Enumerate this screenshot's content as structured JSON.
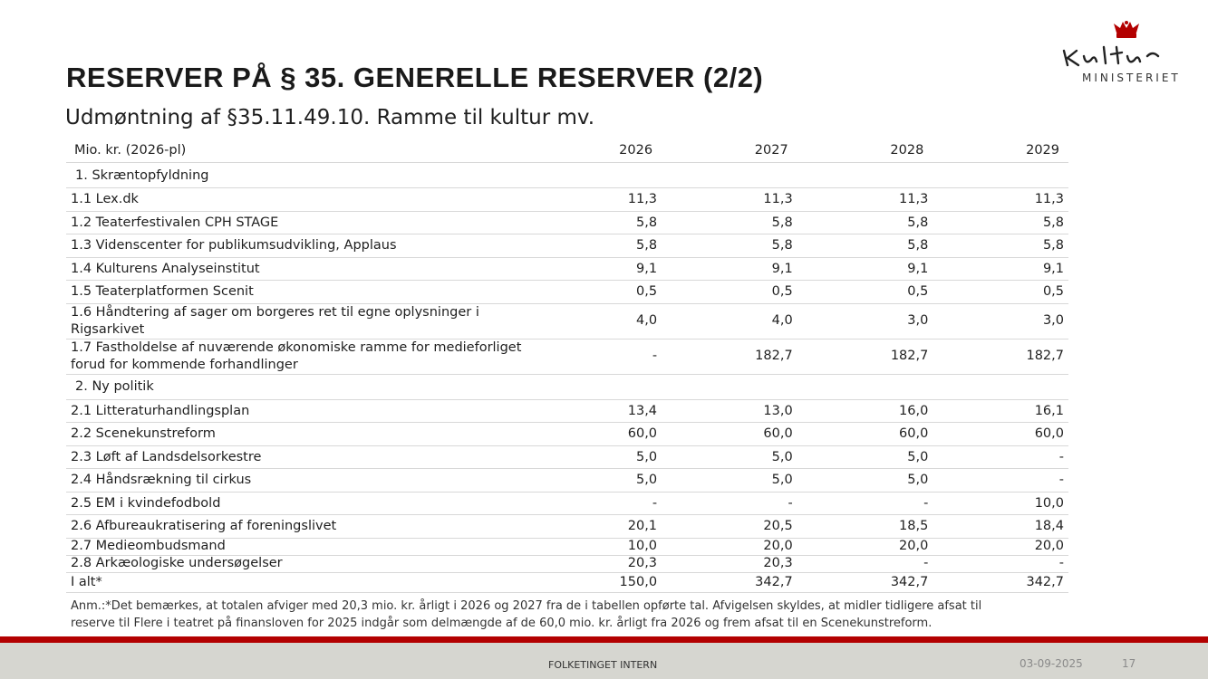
{
  "slide": {
    "title": "RESERVER PÅ § 35. GENERELLE RESERVER (2/2)",
    "subtitle": "Udmøntning af §35.11.49.10. Ramme til kultur mv.",
    "logo_text": "MINISTERIET"
  },
  "table": {
    "header": {
      "label": "Mio. kr. (2026-pl)",
      "years": [
        "2026",
        "2027",
        "2028",
        "2029"
      ]
    },
    "sections": [
      {
        "title": "1.  Skræntopfyldning",
        "rows": [
          {
            "label": "1.1 Lex.dk",
            "values": [
              "11,3",
              "11,3",
              "11,3",
              "11,3"
            ]
          },
          {
            "label": "1.2 Teaterfestivalen CPH STAGE",
            "values": [
              "5,8",
              "5,8",
              "5,8",
              "5,8"
            ]
          },
          {
            "label": "1.3 Videnscenter for publikumsudvikling, Applaus",
            "values": [
              "5,8",
              "5,8",
              "5,8",
              "5,8"
            ]
          },
          {
            "label": "1.4 Kulturens Analyseinstitut",
            "values": [
              "9,1",
              "9,1",
              "9,1",
              "9,1"
            ]
          },
          {
            "label": "1.5 Teaterplatformen Scenit",
            "values": [
              "0,5",
              "0,5",
              "0,5",
              "0,5"
            ]
          },
          {
            "label": "1.6 Håndtering af sager om borgeres ret til egne oplysninger i",
            "label2": "Rigsarkivet",
            "values": [
              "4,0",
              "4,0",
              "3,0",
              "3,0"
            ]
          },
          {
            "label": "1.7 Fastholdelse af nuværende økonomiske ramme for medieforliget",
            "label2": "forud for kommende forhandlinger",
            "values": [
              "-",
              "182,7",
              "182,7",
              "182,7"
            ]
          }
        ]
      },
      {
        "title": "2.  Ny politik",
        "rows": [
          {
            "label": "2.1 Litteraturhandlingsplan",
            "values": [
              "13,4",
              "13,0",
              "16,0",
              "16,1"
            ]
          },
          {
            "label": "2.2 Scenekunstreform",
            "values": [
              "60,0",
              "60,0",
              "60,0",
              "60,0"
            ]
          },
          {
            "label": "2.3 Løft af Landsdelsorkestre",
            "values": [
              "5,0",
              "5,0",
              "5,0",
              "-"
            ]
          },
          {
            "label": "2.4 Håndsrækning til cirkus",
            "values": [
              "5,0",
              "5,0",
              "5,0",
              "-"
            ]
          },
          {
            "label": "2.5 EM i kvindefodbold",
            "values": [
              "-",
              "-",
              "-",
              "10,0"
            ]
          },
          {
            "label": "2.6 Afbureaukratisering af foreningslivet",
            "values": [
              "20,1",
              "20,5",
              "18,5",
              "18,4"
            ]
          },
          {
            "label": "2.7 Medieombudsmand",
            "values": [
              "10,0",
              "20,0",
              "20,0",
              "20,0"
            ]
          },
          {
            "label": "2.8 Arkæologiske undersøgelser",
            "values": [
              "20,3",
              "20,3",
              "-",
              "-"
            ]
          }
        ]
      }
    ],
    "total": {
      "label": "I alt*",
      "values": [
        "150,0",
        "342,7",
        "342,7",
        "342,7"
      ]
    }
  },
  "note": {
    "line1": "Anm.:*Det bemærkes, at totalen afviger med 20,3 mio. kr. årligt i 2026 og 2027 fra de i tabellen opførte tal. Afvigelsen skyldes, at midler tidligere afsat til",
    "line2": "reserve til Flere i teatret på finansloven for 2025 indgår som delmængde af de 60,0 mio. kr. årligt fra 2026 og frem afsat til en Scenekunstreform."
  },
  "footer": {
    "center": "FOLKETINGET INTERN",
    "date": "03-09-2025",
    "page": "17"
  },
  "colors": {
    "accent_red": "#b30000",
    "footer_bg": "#d6d6d0",
    "crown": "#b30000"
  }
}
